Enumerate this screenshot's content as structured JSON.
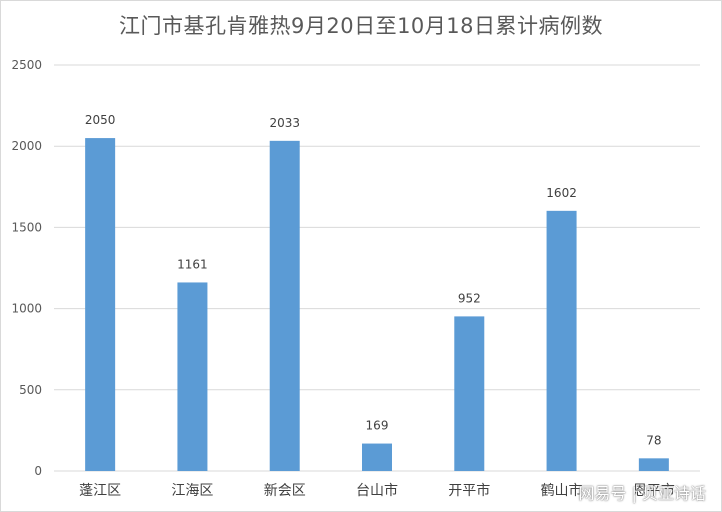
{
  "chart_data": {
    "type": "bar",
    "title": "江门市基孔肯雅热9月20日至10月18日累计病例数",
    "categories": [
      "蓬江区",
      "江海区",
      "新会区",
      "台山市",
      "开平市",
      "鹤山市",
      "恩平市"
    ],
    "values": [
      2050,
      1161,
      2033,
      169,
      952,
      1602,
      78
    ],
    "ylim": [
      0,
      2500
    ],
    "yticks": [
      0,
      500,
      1000,
      1500,
      2000,
      2500
    ],
    "xlabel": "",
    "ylabel": "",
    "grid": true,
    "legend": "none",
    "bar_color": "#5b9bd5",
    "data_labels": true
  },
  "watermark": "网易号 | 贝亚诗话"
}
